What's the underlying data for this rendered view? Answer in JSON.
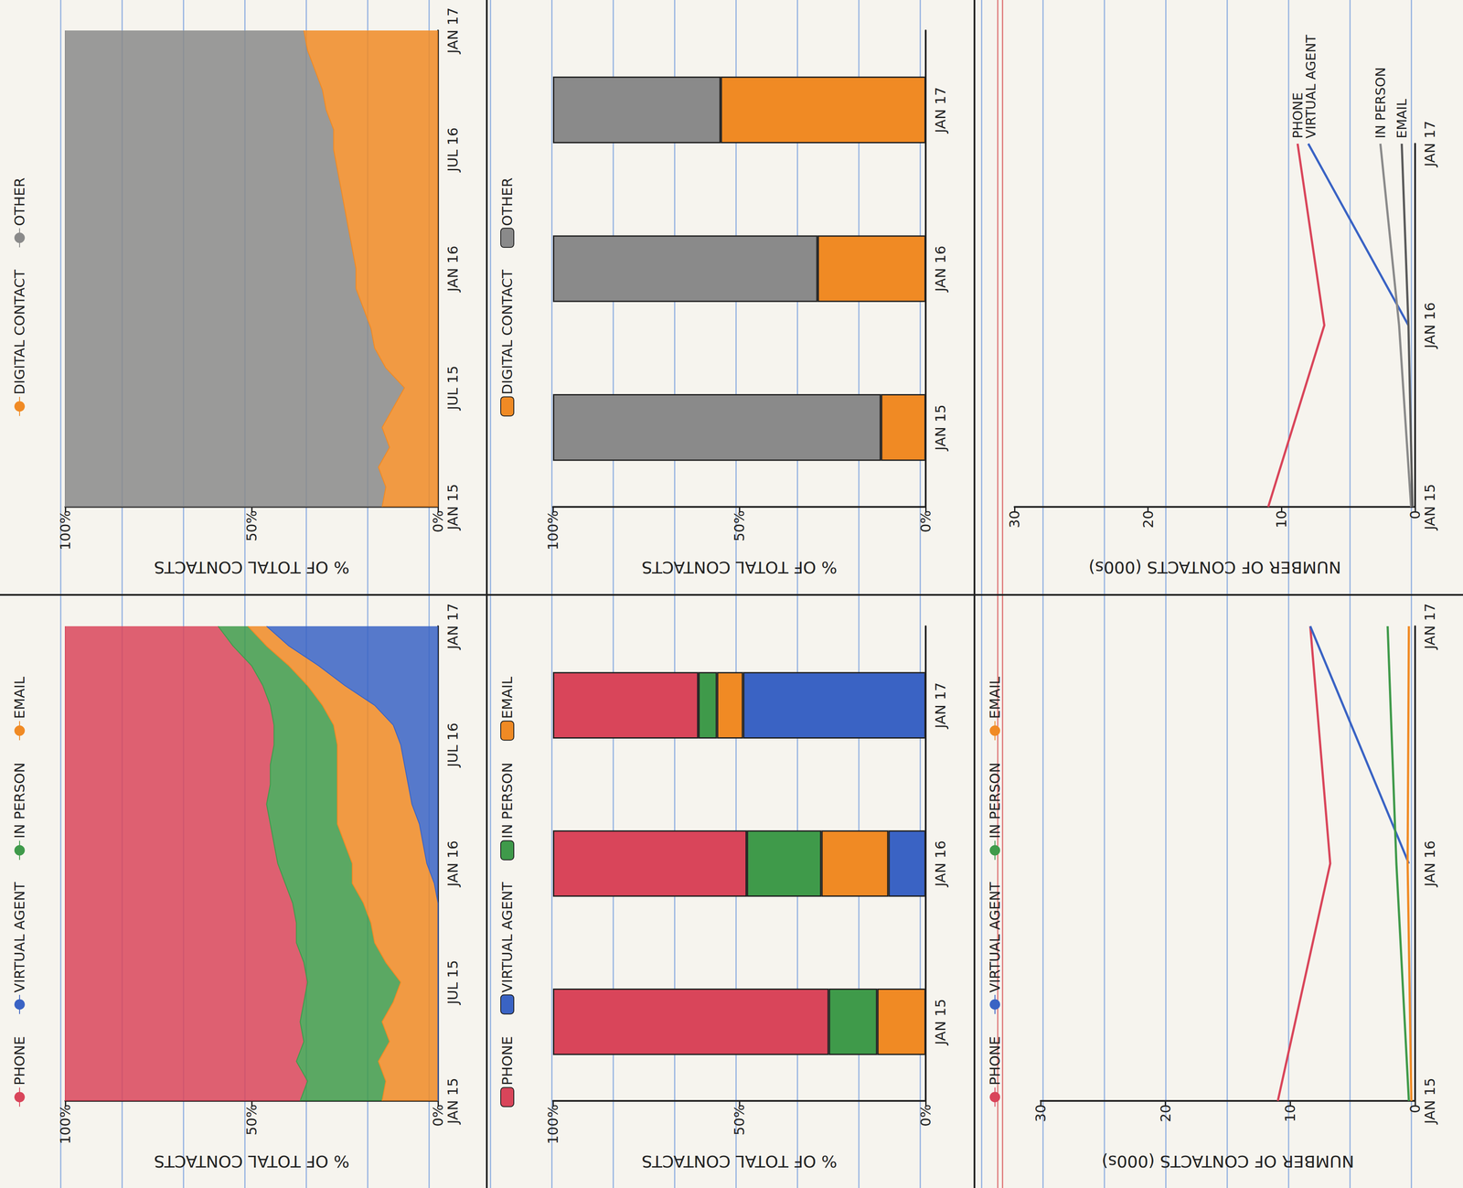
{
  "chart_data": [
    {
      "type": "area",
      "y_label": "% OF TOTAL CONTACTS",
      "stacked": true,
      "grid": false,
      "legend": "top",
      "categories": [
        "JAN 15",
        null,
        null,
        null,
        null,
        null,
        "JUL 15",
        null,
        null,
        null,
        null,
        null,
        "JAN 16",
        null,
        null,
        null,
        null,
        null,
        "JUL 16",
        null,
        null,
        null,
        null,
        null,
        "JAN 17"
      ],
      "ylim": [
        0,
        100
      ],
      "yticks": [
        {
          "value": 0,
          "label": "0%"
        },
        {
          "value": 50,
          "label": "50%"
        },
        {
          "value": 100,
          "label": "100%"
        }
      ],
      "series": [
        {
          "name": "PHONE",
          "color": "#d9455a",
          "values": [
            63,
            65,
            62,
            64,
            63,
            64,
            65,
            64,
            62,
            62,
            61,
            59,
            57,
            56,
            55,
            54,
            55,
            55,
            56,
            56,
            55,
            53,
            50,
            45,
            41
          ]
        },
        {
          "name": "VIRTUAL AGENT",
          "color": "#3a63c4",
          "values": [
            0,
            0,
            0,
            0,
            0,
            0,
            0,
            0,
            0,
            0,
            0,
            1,
            3,
            4,
            5,
            7,
            8,
            9,
            10,
            12,
            17,
            25,
            32,
            40,
            46
          ]
        },
        {
          "name": "IN PERSON",
          "color": "#3f9a4a",
          "values": [
            22,
            21,
            22,
            23,
            22,
            24,
            25,
            22,
            21,
            20,
            19,
            18,
            20,
            19,
            18,
            19,
            18,
            18,
            17,
            16,
            14,
            12,
            10,
            9,
            8
          ]
        },
        {
          "name": "EMAIL",
          "color": "#f08a24",
          "values": [
            15,
            14,
            16,
            13,
            15,
            12,
            10,
            14,
            17,
            18,
            20,
            22,
            20,
            21,
            22,
            20,
            19,
            18,
            17,
            16,
            14,
            10,
            8,
            6,
            5
          ]
        }
      ]
    },
    {
      "type": "area",
      "y_label": "% OF TOTAL CONTACTS",
      "stacked": true,
      "grid": false,
      "legend": "top",
      "categories": [
        "JAN 15",
        null,
        null,
        null,
        null,
        null,
        "JUL 15",
        null,
        null,
        null,
        null,
        null,
        "JAN 16",
        null,
        null,
        null,
        null,
        null,
        "JUL 16",
        null,
        null,
        null,
        null,
        null,
        "JAN 17"
      ],
      "ylim": [
        0,
        100
      ],
      "yticks": [
        {
          "value": 0,
          "label": "0%"
        },
        {
          "value": 50,
          "label": "50%"
        },
        {
          "value": 100,
          "label": "100%"
        }
      ],
      "series": [
        {
          "name": "DIGITAL CONTACT",
          "color": "#f08a24",
          "values": [
            15,
            14,
            16,
            13,
            15,
            12,
            9,
            14,
            17,
            18,
            20,
            22,
            22,
            23,
            24,
            25,
            26,
            27,
            28,
            28,
            30,
            31,
            33,
            35,
            36
          ]
        },
        {
          "name": "OTHER",
          "color": "#8a8a8a",
          "values": [
            85,
            86,
            84,
            87,
            85,
            88,
            91,
            86,
            83,
            82,
            80,
            78,
            78,
            77,
            76,
            75,
            74,
            73,
            72,
            72,
            70,
            69,
            67,
            65,
            64
          ]
        }
      ]
    },
    {
      "type": "bar",
      "y_label": "% OF TOTAL CONTACTS",
      "stacked": true,
      "grid": false,
      "legend": "top",
      "categories": [
        "JAN 15",
        "JAN 16",
        "JAN 17"
      ],
      "ylim": [
        0,
        100
      ],
      "yticks": [
        {
          "value": 0,
          "label": "0%"
        },
        {
          "value": 50,
          "label": "50%"
        },
        {
          "value": 100,
          "label": "100%"
        }
      ],
      "series": [
        {
          "name": "PHONE",
          "color": "#d9455a",
          "values": [
            74,
            52,
            39
          ]
        },
        {
          "name": "VIRTUAL AGENT",
          "color": "#3a63c4",
          "values": [
            0,
            10,
            49
          ]
        },
        {
          "name": "IN PERSON",
          "color": "#3f9a4a",
          "values": [
            13,
            20,
            5
          ]
        },
        {
          "name": "EMAIL",
          "color": "#f08a24",
          "values": [
            13,
            18,
            7
          ]
        }
      ]
    },
    {
      "type": "bar",
      "y_label": "% OF TOTAL CONTACTS",
      "stacked": true,
      "grid": false,
      "legend": "top",
      "categories": [
        "JAN 15",
        "JAN 16",
        "JAN 17"
      ],
      "ylim": [
        0,
        100
      ],
      "yticks": [
        {
          "value": 0,
          "label": "0%"
        },
        {
          "value": 50,
          "label": "50%"
        },
        {
          "value": 100,
          "label": "100%"
        }
      ],
      "series": [
        {
          "name": "DIGITAL CONTACT",
          "color": "#f08a24",
          "values": [
            12,
            29,
            55
          ]
        },
        {
          "name": "OTHER",
          "color": "#8a8a8a",
          "values": [
            88,
            71,
            45
          ]
        }
      ]
    },
    {
      "type": "line",
      "y_label": "NUMBER OF CONTACTS (000s)",
      "grid": false,
      "legend": "top",
      "categories": [
        "JAN 15",
        "JAN 16",
        "JAN 17"
      ],
      "ylim": [
        0,
        30
      ],
      "yticks": [
        0,
        10,
        20,
        30
      ],
      "series": [
        {
          "name": "PHONE",
          "color": "#d9455a",
          "values": [
            11,
            6.8,
            8.4
          ]
        },
        {
          "name": "VIRTUAL AGENT",
          "color": "#3a63c4",
          "values": [
            null,
            0.5,
            8.4
          ]
        },
        {
          "name": "IN PERSON",
          "color": "#3f9a4a",
          "values": [
            0.5,
            1.5,
            2.2
          ]
        },
        {
          "name": "EMAIL",
          "color": "#f08a24",
          "values": [
            0.3,
            0.6,
            0.5
          ]
        }
      ]
    },
    {
      "type": "line",
      "y_label": "NUMBER OF CONTACTS (000s)",
      "grid": false,
      "legend": "inline",
      "categories": [
        "JAN 15",
        "JAN 16",
        "JAN 17"
      ],
      "ylim": [
        0,
        30
      ],
      "yticks": [
        0,
        10,
        20,
        30
      ],
      "series": [
        {
          "name": "PHONE",
          "color": "#d9455a",
          "values": [
            11,
            6.8,
            8.8
          ]
        },
        {
          "name": "VIRTUAL AGENT",
          "color": "#3a63c4",
          "values": [
            null,
            0.5,
            8.0
          ]
        },
        {
          "name": "IN PERSON",
          "color": "#8a8a8a",
          "values": [
            0.3,
            1.2,
            2.6
          ]
        },
        {
          "name": "EMAIL",
          "color": "#5a5a5a",
          "values": [
            0.2,
            0.5,
            1.0
          ]
        }
      ]
    }
  ]
}
